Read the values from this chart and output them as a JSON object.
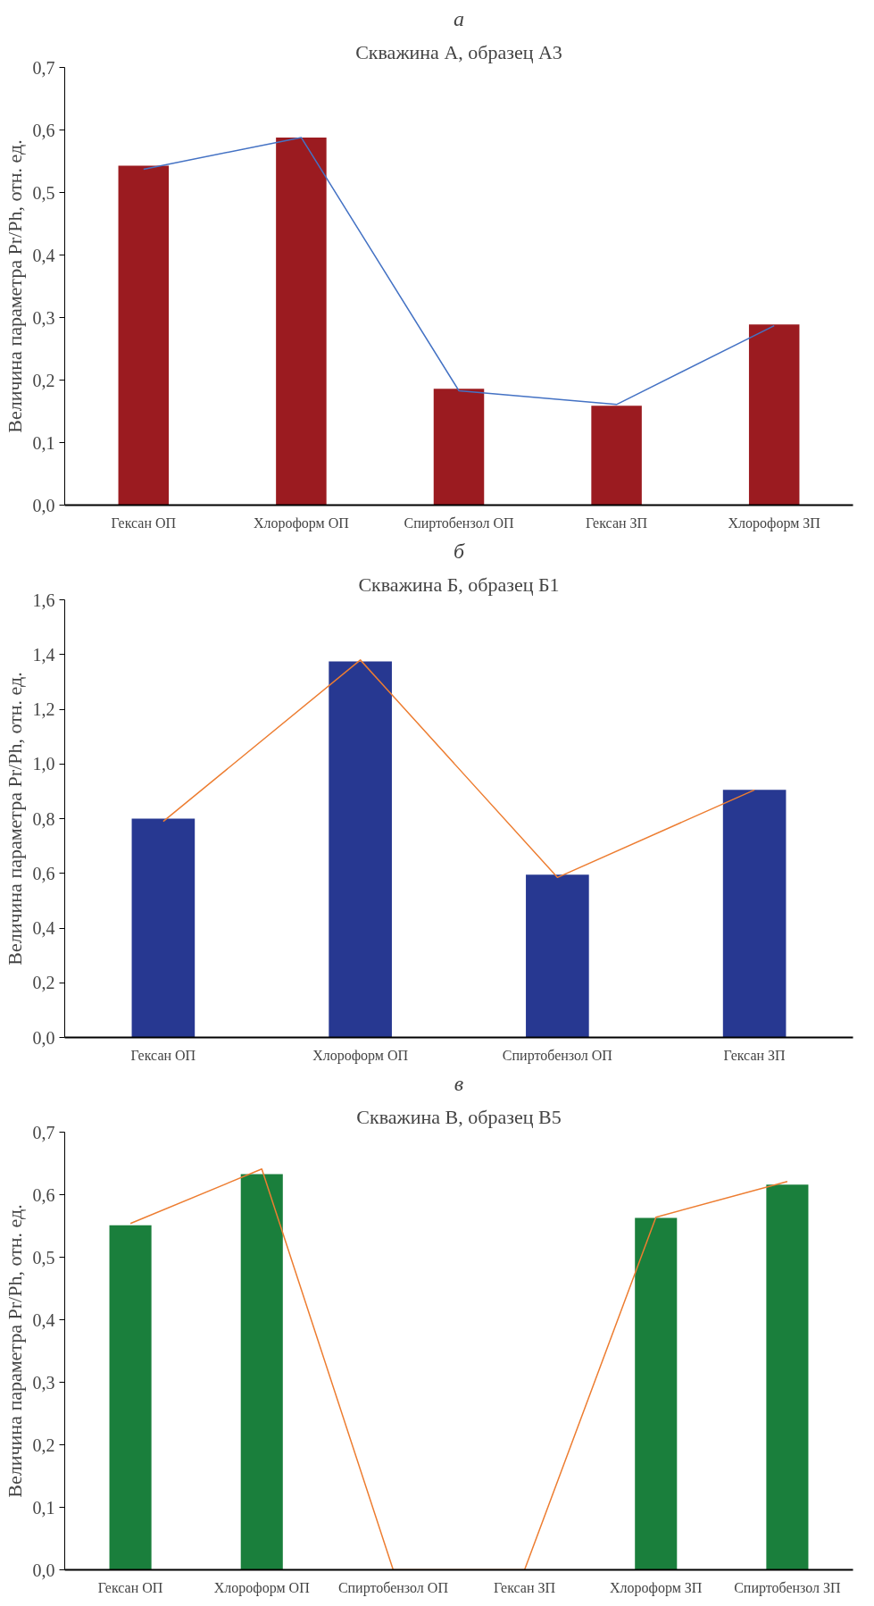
{
  "chart_data": [
    {
      "type": "bar",
      "annotations": [
        "а"
      ],
      "title": "Скважина А, образец А3",
      "ylabel": "Величина параметра Pr/Ph, отн. ед.",
      "categories": [
        "Гексан ОП",
        "Хлороформ ОП",
        "Спиртобензол ОП",
        "Гексан ЗП",
        "Хлороформ ЗП"
      ],
      "series": [
        {
          "color": "#9b1b20",
          "values": [
            0.543,
            0.588,
            0.186,
            0.159,
            0.289
          ]
        },
        {
          "type": "line",
          "color": "#4472c4",
          "values": [
            0.537,
            0.588,
            0.183,
            0.161,
            0.287
          ]
        }
      ],
      "ylim": [
        0,
        0.7
      ],
      "yticks": [
        {
          "value": 0,
          "label": "0,0"
        },
        {
          "value": 0.1,
          "label": "0,1"
        },
        {
          "value": 0.2,
          "label": "0,2"
        },
        {
          "value": 0.3,
          "label": "0,3"
        },
        {
          "value": 0.4,
          "label": "0,4"
        },
        {
          "value": 0.5,
          "label": "0,5"
        },
        {
          "value": 0.6,
          "label": "0,6"
        },
        {
          "value": 0.7,
          "label": "0,7"
        }
      ]
    },
    {
      "type": "bar",
      "annotations": [
        "б"
      ],
      "title": "Скважина Б, образец Б1",
      "ylabel": "Величина параметра Pr/Ph, отн. ед.",
      "categories": [
        "Гексан ОП",
        "Хлороформ ОП",
        "Спиртобензол ОП",
        "Гексан ЗП"
      ],
      "series": [
        {
          "color": "#273891",
          "values": [
            0.8,
            1.375,
            0.595,
            0.905
          ]
        },
        {
          "type": "line",
          "color": "#ed7d31",
          "values": [
            0.79,
            1.38,
            0.585,
            0.905
          ]
        }
      ],
      "ylim": [
        0,
        1.6
      ],
      "yticks": [
        {
          "value": 0,
          "label": "0,0"
        },
        {
          "value": 0.2,
          "label": "0,2"
        },
        {
          "value": 0.4,
          "label": "0,4"
        },
        {
          "value": 0.6,
          "label": "0,6"
        },
        {
          "value": 0.8,
          "label": "0,8"
        },
        {
          "value": 1.0,
          "label": "1,0"
        },
        {
          "value": 1.2,
          "label": "1,2"
        },
        {
          "value": 1.4,
          "label": "1,4"
        },
        {
          "value": 1.6,
          "label": "1,6"
        }
      ]
    },
    {
      "type": "bar",
      "annotations": [
        "в"
      ],
      "title": "Скважина В, образец В5",
      "ylabel": "Величина параметра Pr/Ph, отн. ед.",
      "categories": [
        "Гексан ОП",
        "Хлороформ ОП",
        "Спиртобензол ОП",
        "Гексан ЗП",
        "Хлороформ ЗП",
        "Спиртобензол ЗП"
      ],
      "series": [
        {
          "color": "#1a7f3c",
          "values": [
            0.551,
            0.633,
            0,
            0,
            0.563,
            0.616
          ]
        },
        {
          "type": "line",
          "color": "#ed7d31",
          "values": [
            0.554,
            0.641,
            0,
            0,
            0.564,
            0.621
          ]
        }
      ],
      "ylim": [
        0,
        0.7
      ],
      "yticks": [
        {
          "value": 0,
          "label": "0,0"
        },
        {
          "value": 0.1,
          "label": "0,1"
        },
        {
          "value": 0.2,
          "label": "0,2"
        },
        {
          "value": 0.3,
          "label": "0,3"
        },
        {
          "value": 0.4,
          "label": "0,4"
        },
        {
          "value": 0.5,
          "label": "0,5"
        },
        {
          "value": 0.6,
          "label": "0,6"
        },
        {
          "value": 0.7,
          "label": "0,7"
        }
      ]
    }
  ]
}
